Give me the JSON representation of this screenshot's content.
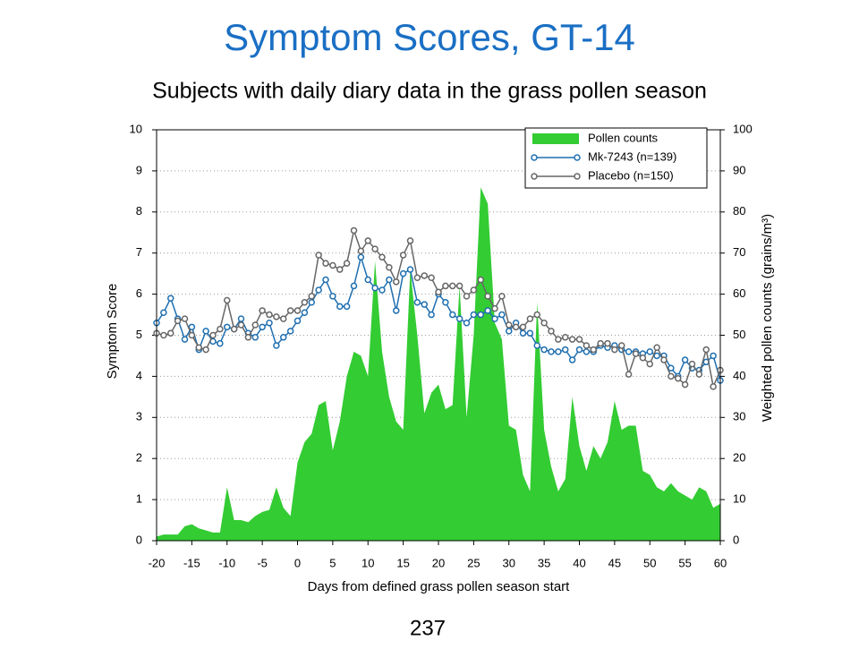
{
  "page_number": "237",
  "chart_data": {
    "type": "line",
    "title": "Symptom Scores, GT-14",
    "subtitle": "Subjects with daily diary data in the grass pollen season",
    "x_label": "Days from defined grass pollen season start",
    "y_label": "Symptom Score",
    "y2_label": "Weighted pollen counts (grains/m³)",
    "x": [
      -20,
      -19,
      -18,
      -17,
      -16,
      -15,
      -14,
      -13,
      -12,
      -11,
      -10,
      -9,
      -8,
      -7,
      -6,
      -5,
      -4,
      -3,
      -2,
      -1,
      0,
      1,
      2,
      3,
      4,
      5,
      6,
      7,
      8,
      9,
      10,
      11,
      12,
      13,
      14,
      15,
      16,
      17,
      18,
      19,
      20,
      21,
      22,
      23,
      24,
      25,
      26,
      27,
      28,
      29,
      30,
      31,
      32,
      33,
      34,
      35,
      36,
      37,
      38,
      39,
      40,
      41,
      42,
      43,
      44,
      45,
      46,
      47,
      48,
      49,
      50,
      51,
      52,
      53,
      54,
      55,
      56,
      57,
      58,
      59,
      60
    ],
    "xlim": [
      -20,
      60
    ],
    "xticks": [
      -20,
      -15,
      -10,
      -5,
      0,
      5,
      10,
      15,
      20,
      25,
      30,
      35,
      40,
      45,
      50,
      55,
      60
    ],
    "ylim": [
      0,
      10
    ],
    "yticks": [
      0,
      1,
      2,
      3,
      4,
      5,
      6,
      7,
      8,
      9,
      10
    ],
    "y2lim": [
      0,
      100
    ],
    "y2ticks": [
      0,
      10,
      20,
      30,
      40,
      50,
      60,
      70,
      80,
      90,
      100
    ],
    "grid": true,
    "legend": "upper right",
    "series": [
      {
        "name": "Pollen counts",
        "type": "area",
        "axis": "y2",
        "color": "#33cc33",
        "values": [
          1,
          1.5,
          1.5,
          1.5,
          3.5,
          4,
          3,
          2.5,
          2,
          2,
          13,
          5,
          5,
          4.5,
          6,
          7,
          7.5,
          13,
          8,
          6,
          19,
          24,
          26,
          33,
          34,
          22,
          29,
          40,
          46,
          45,
          40,
          68,
          46,
          35,
          29,
          27,
          66,
          50,
          31,
          36,
          38,
          32,
          33,
          62,
          30,
          50,
          86,
          82,
          53,
          49,
          28,
          27,
          16,
          12,
          58,
          27,
          18,
          12,
          15,
          35,
          23,
          17,
          23,
          20,
          24,
          34,
          27,
          28,
          28,
          17,
          16,
          13,
          12,
          14,
          12,
          11,
          10,
          13,
          12,
          8,
          9
        ]
      },
      {
        "name": "Mk-7243 (n=139)",
        "type": "line",
        "color": "#1f6fb0",
        "values": [
          5.3,
          5.55,
          5.9,
          5.4,
          4.9,
          5.2,
          4.65,
          5.1,
          4.85,
          4.8,
          5.2,
          5.15,
          5.4,
          5.05,
          4.95,
          5.2,
          5.3,
          4.75,
          4.95,
          5.1,
          5.35,
          5.55,
          5.8,
          6.1,
          6.35,
          5.95,
          5.7,
          5.7,
          6.2,
          6.9,
          6.35,
          6.15,
          6.1,
          6.35,
          5.6,
          6.5,
          6.6,
          5.8,
          5.75,
          5.5,
          6.0,
          5.8,
          5.5,
          5.4,
          5.3,
          5.5,
          5.5,
          5.6,
          5.4,
          5.5,
          5.1,
          5.3,
          5.05,
          5.05,
          4.75,
          4.65,
          4.6,
          4.6,
          4.65,
          4.4,
          4.65,
          4.6,
          4.6,
          4.75,
          4.7,
          4.75,
          4.65,
          4.6,
          4.6,
          4.55,
          4.6,
          4.5,
          4.5,
          4.2,
          4.0,
          4.4,
          4.2,
          4.15,
          4.35,
          4.5,
          3.9
        ]
      },
      {
        "name": "Placebo (n=150)",
        "type": "line",
        "color": "#666666",
        "values": [
          5.05,
          5.0,
          5.05,
          5.35,
          5.4,
          5.0,
          4.7,
          4.65,
          5.0,
          5.15,
          5.85,
          5.15,
          5.25,
          4.95,
          5.25,
          5.6,
          5.5,
          5.45,
          5.4,
          5.6,
          5.6,
          5.8,
          5.95,
          6.95,
          6.75,
          6.7,
          6.6,
          6.75,
          7.55,
          7.05,
          7.3,
          7.1,
          6.9,
          6.65,
          6.3,
          6.95,
          7.3,
          6.4,
          6.45,
          6.4,
          6.05,
          6.2,
          6.2,
          6.2,
          5.95,
          6.1,
          6.35,
          5.95,
          5.65,
          5.95,
          5.25,
          5.2,
          5.2,
          5.4,
          5.5,
          5.3,
          5.1,
          4.9,
          4.95,
          4.9,
          4.9,
          4.75,
          4.65,
          4.8,
          4.8,
          4.65,
          4.75,
          4.05,
          4.55,
          4.45,
          4.3,
          4.7,
          4.4,
          4.0,
          3.95,
          3.8,
          4.3,
          4.05,
          4.65,
          3.75,
          4.15
        ]
      }
    ]
  }
}
